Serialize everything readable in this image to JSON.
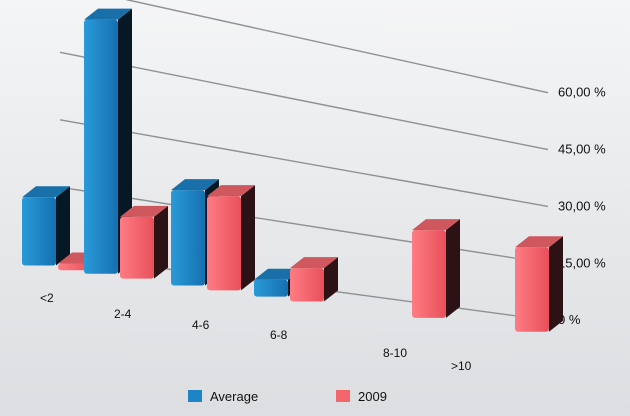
{
  "chart_data": {
    "type": "bar",
    "title": "",
    "xlabel": "",
    "ylabel": "",
    "categories": [
      "<2",
      "2-4",
      "4-6",
      "6-8",
      "8-10",
      ">10"
    ],
    "series": [
      {
        "name": "Average",
        "values": [
          15,
          57,
          22,
          4,
          0,
          0
        ]
      },
      {
        "name": "2009",
        "values": [
          1.5,
          14,
          22,
          8,
          22,
          22
        ]
      }
    ],
    "y_ticks": [
      "0 %",
      "15,00 %",
      "30,00 %",
      "45,00 %",
      "60,00 %"
    ],
    "ylim": [
      0,
      60
    ],
    "grid": true,
    "legend_position": "bottom",
    "colors": {
      "Average": "#1d84c6",
      "2009": "#f4666e"
    }
  }
}
